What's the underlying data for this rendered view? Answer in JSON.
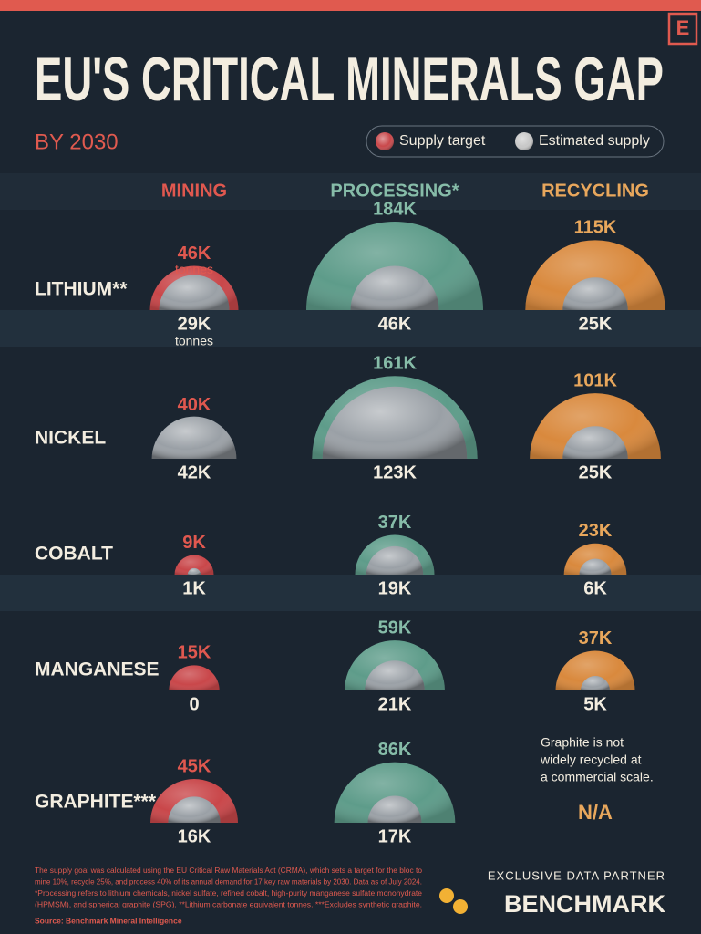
{
  "logo": "E",
  "chart_data": {
    "type": "semicircle",
    "title": "EU'S CRITICAL MINERALS GAP",
    "subtitle": "BY 2030",
    "legend": [
      {
        "name": "Supply target",
        "color": "#c9474a"
      },
      {
        "name": "Estimated supply",
        "color": "#c8c8c8"
      }
    ],
    "unit": "tonnes",
    "categories": [
      "LITHIUM**",
      "NICKEL",
      "COBALT",
      "MANGANESE",
      "GRAPHITE***"
    ],
    "series": [
      {
        "name": "MINING",
        "color": "#c9474a",
        "label_color": "#e0584f",
        "target": [
          46000,
          40000,
          9000,
          15000,
          45000
        ],
        "target_labels": [
          "46K",
          "40K",
          "9K",
          "15K",
          "45K"
        ],
        "supply": [
          29000,
          42000,
          1000,
          0,
          16000
        ],
        "supply_labels": [
          "29K",
          "42K",
          "1K",
          "0",
          "16K"
        ]
      },
      {
        "name": "PROCESSING*",
        "color": "#5e9c8a",
        "label_color": "#86bca8",
        "target": [
          184000,
          161000,
          37000,
          59000,
          86000
        ],
        "target_labels": [
          "184K",
          "161K",
          "37K",
          "59K",
          "86K"
        ],
        "supply": [
          46000,
          123000,
          19000,
          21000,
          17000
        ],
        "supply_labels": [
          "46K",
          "123K",
          "19K",
          "21K",
          "17K"
        ]
      },
      {
        "name": "RECYCLING",
        "color": "#d9893d",
        "label_color": "#e8a75c",
        "target": [
          115000,
          101000,
          23000,
          37000,
          null
        ],
        "target_labels": [
          "115K",
          "101K",
          "23K",
          "37K",
          null
        ],
        "supply": [
          25000,
          25000,
          6000,
          5000,
          null
        ],
        "supply_labels": [
          "25K",
          "25K",
          "6K",
          "5K",
          "N/A"
        ]
      }
    ],
    "annotation": [
      "Graphite is not",
      "widely recycled at",
      "a commercial scale."
    ]
  },
  "footnote": [
    "The supply goal was calculated using the EU Critical Raw Materials Act (CRMA), which sets a target for the bloc to",
    "mine 10%, recycle 25%, and process 40% of its annual demand for 17 key raw materials by 2030. Data as of July 2024.",
    "*Processing refers to lithium chemicals, nickel sulfate, refined cobalt, high-purity manganese sulfate monohydrate",
    "(HPMSM), and spherical graphite (SPG). **Lithium carbonate equivalent tonnes. ***Excludes synthetic graphite."
  ],
  "source": "Source: Benchmark Mineral Intelligence",
  "partner": {
    "caption": "EXCLUSIVE DATA PARTNER",
    "name": "BENCHMARK"
  }
}
